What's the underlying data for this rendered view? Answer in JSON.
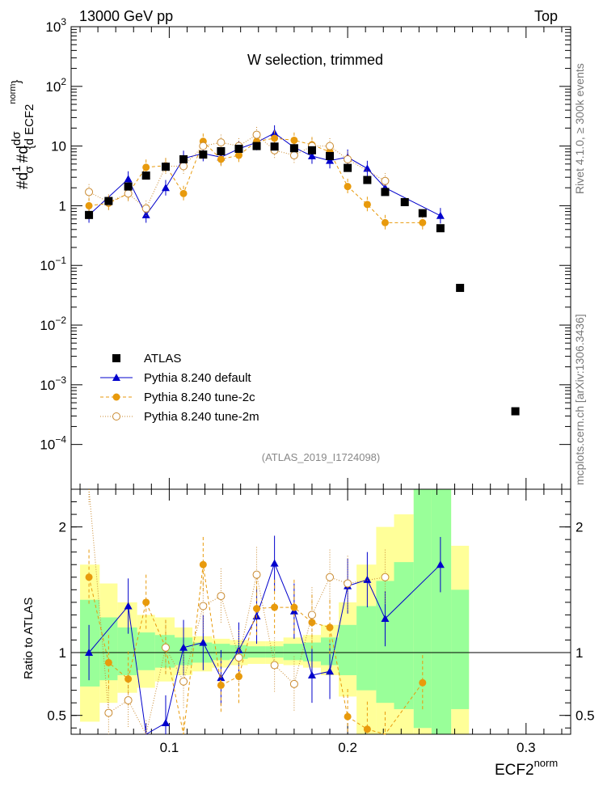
{
  "header": {
    "left": "13000 GeV pp",
    "right": "Top"
  },
  "title": "W selection, trimmed",
  "analysis_id": "(ATLAS_2019_I1724098)",
  "side_text": {
    "rivet": "Rivet 4.1.0, ≥ 300k events",
    "mcplots": "mcplots.cern.ch [arXiv:1306.3436]"
  },
  "main_ylabel": {
    "prefix": "#d",
    "one": "1",
    "sigma": "σ",
    "hashd": "#d",
    "dsig": "dσ",
    "dvar": "{d ECF2",
    "norm": "norm",
    "close": "}"
  },
  "ratio_ylabel": "Ratio to ATLAS",
  "xlabel": {
    "main": "ECF2",
    "sup": "norm"
  },
  "legend": [
    {
      "label": "ATLAS",
      "color": "#000000",
      "marker": "square"
    },
    {
      "label": "Pythia 8.240 default",
      "color": "#0000cc",
      "marker": "triangle"
    },
    {
      "label": "Pythia 8.240 tune-2c",
      "color": "#e89a0c",
      "marker": "circle"
    },
    {
      "label": "Pythia 8.240 tune-2m",
      "color": "#c98a30",
      "marker": "open-circle"
    }
  ],
  "chart_data": {
    "type": "scatter",
    "xlim": [
      0.045,
      0.325
    ],
    "ylim_log10": [
      -4.75,
      3.0
    ],
    "ratio_ylim": [
      0.35,
      2.3
    ],
    "x_ticks": [
      {
        "v": 0.1,
        "label": "0.1"
      },
      {
        "v": 0.2,
        "label": "0.2"
      },
      {
        "v": 0.3,
        "label": "0.3"
      }
    ],
    "y_ticks": [
      {
        "e": -4,
        "label": "10",
        "sup": "−4"
      },
      {
        "e": -3,
        "label": "10",
        "sup": "−3"
      },
      {
        "e": -2,
        "label": "10",
        "sup": "−2"
      },
      {
        "e": -1,
        "label": "10",
        "sup": "−1"
      },
      {
        "e": 0,
        "label": "1",
        "sup": ""
      },
      {
        "e": 1,
        "label": "10",
        "sup": ""
      },
      {
        "e": 2,
        "label": "10",
        "sup": "2"
      },
      {
        "e": 3,
        "label": "10",
        "sup": "3"
      }
    ],
    "ratio_ticks": [
      {
        "v": 0.5,
        "label": "0.5"
      },
      {
        "v": 1,
        "label": "1"
      },
      {
        "v": 2,
        "label": "2"
      }
    ],
    "atlas": {
      "name": "ATLAS",
      "x": [
        0.055,
        0.066,
        0.077,
        0.087,
        0.098,
        0.108,
        0.119,
        0.129,
        0.139,
        0.149,
        0.159,
        0.17,
        0.18,
        0.19,
        0.2,
        0.211,
        0.221,
        0.232,
        0.242,
        0.252,
        0.263,
        0.294
      ],
      "y": [
        0.7,
        1.2,
        2.1,
        3.2,
        4.5,
        6.0,
        7.2,
        8.2,
        9.0,
        10.0,
        9.8,
        9.2,
        8.5,
        6.8,
        4.3,
        2.7,
        1.7,
        1.15,
        0.75,
        0.42,
        0.042,
        0.00036
      ]
    },
    "series": [
      {
        "name": "Pythia 8.240 default",
        "color": "#0000cc",
        "marker": "triangle",
        "x": [
          0.055,
          0.077,
          0.087,
          0.098,
          0.108,
          0.119,
          0.129,
          0.139,
          0.149,
          0.159,
          0.17,
          0.18,
          0.19,
          0.2,
          0.211,
          0.221,
          0.252
        ],
        "y": [
          0.7,
          2.8,
          0.7,
          2.0,
          6.2,
          7.5,
          6.5,
          9.0,
          11.5,
          16.5,
          9.5,
          6.8,
          5.7,
          6.5,
          4.2,
          2.0,
          0.68
        ],
        "ratio": [
          1.0,
          1.37,
          0.22,
          0.44,
          1.04,
          1.08,
          0.8,
          1.02,
          1.29,
          1.71,
          1.33,
          0.82,
          0.85,
          1.53,
          1.58,
          1.27,
          1.7
        ]
      },
      {
        "name": "Pythia 8.240 tune-2c",
        "color": "#e89a0c",
        "marker": "circle",
        "x": [
          0.055,
          0.066,
          0.077,
          0.087,
          0.098,
          0.108,
          0.119,
          0.129,
          0.139,
          0.149,
          0.159,
          0.17,
          0.18,
          0.19,
          0.2,
          0.211,
          0.221,
          0.242
        ],
        "y": [
          1.0,
          1.1,
          1.6,
          4.4,
          4.7,
          1.6,
          12.0,
          6.0,
          7.0,
          12.0,
          13.5,
          12.5,
          10.5,
          8.0,
          2.1,
          1.05,
          0.52,
          0.52
        ],
        "ratio": [
          1.6,
          0.92,
          0.79,
          1.4,
          1.04,
          0.27,
          1.7,
          0.74,
          0.81,
          1.35,
          1.36,
          1.36,
          1.24,
          1.2,
          0.49,
          0.39,
          0.31,
          0.76
        ]
      },
      {
        "name": "Pythia 8.240 tune-2m",
        "color": "#c98a30",
        "marker": "open-circle",
        "x": [
          0.055,
          0.066,
          0.077,
          0.087,
          0.098,
          0.108,
          0.119,
          0.129,
          0.139,
          0.149,
          0.159,
          0.17,
          0.18,
          0.19,
          0.2,
          0.221
        ],
        "y": [
          1.7,
          1.15,
          1.6,
          0.9,
          4.6,
          4.6,
          10.0,
          11.5,
          10.0,
          15.5,
          8.5,
          7.0,
          10.0,
          10.0,
          6.0,
          2.6
        ],
        "ratio": [
          2.4,
          0.52,
          0.62,
          0.24,
          1.04,
          0.77,
          1.37,
          1.45,
          0.96,
          1.62,
          0.9,
          0.75,
          1.3,
          1.6,
          1.55,
          1.6
        ]
      }
    ],
    "ratio_bands": {
      "x_edges": [
        0.05,
        0.061,
        0.071,
        0.082,
        0.092,
        0.103,
        0.113,
        0.124,
        0.134,
        0.144,
        0.154,
        0.164,
        0.175,
        0.185,
        0.195,
        0.205,
        0.216,
        0.226,
        0.237,
        0.247,
        0.258,
        0.268,
        0.32
      ],
      "green": [
        [
          0.73,
          1.42
        ],
        [
          0.78,
          1.28
        ],
        [
          0.82,
          1.2
        ],
        [
          0.86,
          1.16
        ],
        [
          0.88,
          1.14
        ],
        [
          0.9,
          1.12
        ],
        [
          0.92,
          1.08
        ],
        [
          0.94,
          1.07
        ],
        [
          0.95,
          1.06
        ],
        [
          0.96,
          1.05
        ],
        [
          0.96,
          1.05
        ],
        [
          0.94,
          1.07
        ],
        [
          0.93,
          1.08
        ],
        [
          0.9,
          1.12
        ],
        [
          0.82,
          1.22
        ],
        [
          0.7,
          1.37
        ],
        [
          0.6,
          1.57
        ],
        [
          0.55,
          1.72
        ],
        [
          0.4,
          2.3
        ],
        [
          0.35,
          2.3
        ],
        [
          0.55,
          1.5
        ]
      ],
      "yellow": [
        [
          0.45,
          1.7
        ],
        [
          0.6,
          1.55
        ],
        [
          0.68,
          1.4
        ],
        [
          0.72,
          1.3
        ],
        [
          0.77,
          1.28
        ],
        [
          0.82,
          1.2
        ],
        [
          0.85,
          1.13
        ],
        [
          0.88,
          1.11
        ],
        [
          0.9,
          1.1
        ],
        [
          0.91,
          1.09
        ],
        [
          0.91,
          1.09
        ],
        [
          0.9,
          1.12
        ],
        [
          0.88,
          1.14
        ],
        [
          0.82,
          1.22
        ],
        [
          0.65,
          1.4
        ],
        [
          0.35,
          1.7
        ],
        [
          0.35,
          2.0
        ],
        [
          0.35,
          2.1
        ],
        [
          0.35,
          2.3
        ],
        [
          0.35,
          2.3
        ],
        [
          0.35,
          1.85
        ]
      ]
    },
    "xlabel": "ECF2norm",
    "ylabel": "Ratio to ATLAS"
  }
}
